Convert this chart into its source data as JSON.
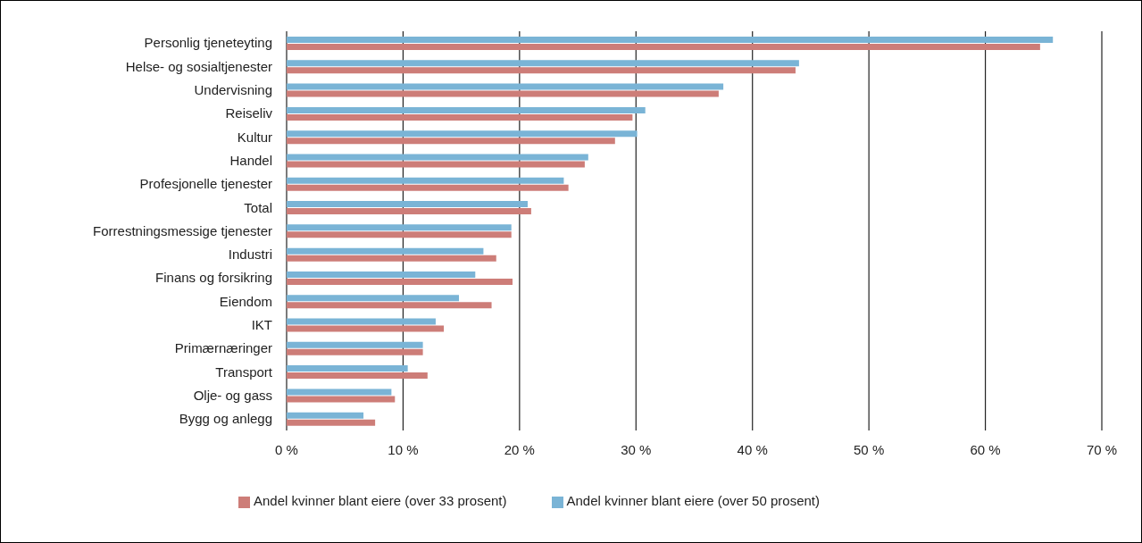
{
  "chart_data": {
    "type": "bar",
    "orientation": "horizontal",
    "categories": [
      "Personlig tjeneteyting",
      "Helse- og sosialtjenester",
      "Undervisning",
      "Reiseliv",
      "Kultur",
      "Handel",
      "Profesjonelle tjenester",
      "Total",
      "Forrestningsmessige tjenester",
      "Industri",
      "Finans og forsikring",
      "Eiendom",
      "IKT",
      "Primærnæringer",
      "Transport",
      "Olje- og gass",
      "Bygg og anlegg"
    ],
    "series": [
      {
        "name": "Andel kvinner blant eiere (over 50 prosent)",
        "color": "#7ab4d6",
        "values": [
          65.8,
          44.0,
          37.5,
          30.8,
          30.1,
          25.9,
          23.8,
          20.7,
          19.3,
          16.9,
          16.2,
          14.8,
          12.8,
          11.7,
          10.4,
          9.0,
          6.6
        ]
      },
      {
        "name": "Andel kvinner blant eiere (over 33 prosent)",
        "color": "#cd7d78",
        "values": [
          64.7,
          43.7,
          37.1,
          29.7,
          28.2,
          25.6,
          24.2,
          21.0,
          19.3,
          18.0,
          19.4,
          17.6,
          13.5,
          11.7,
          12.1,
          9.3,
          7.6
        ]
      }
    ],
    "xlim": [
      0,
      70
    ],
    "xticks": [
      {
        "value": 0,
        "label": "0 %"
      },
      {
        "value": 10,
        "label": "10 %"
      },
      {
        "value": 20,
        "label": "20 %"
      },
      {
        "value": 30,
        "label": "30 %"
      },
      {
        "value": 40,
        "label": "40 %"
      },
      {
        "value": 50,
        "label": "50 %"
      },
      {
        "value": 60,
        "label": "60 %"
      },
      {
        "value": 70,
        "label": "70 %"
      }
    ],
    "grid": "x",
    "legend": "bottom"
  }
}
